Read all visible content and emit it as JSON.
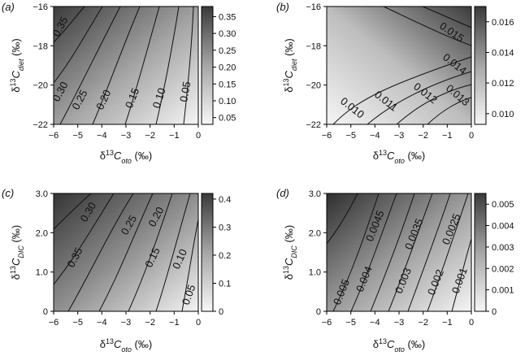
{
  "figure": {
    "panels": [
      {
        "label": "(a)",
        "xlabel_parts": {
          "delta": "δ",
          "sup": "13",
          "C": "C",
          "sub": "oto",
          "unit": " (‰)"
        },
        "ylabel_parts": {
          "delta": "δ",
          "sup": "13",
          "C": "C",
          "sub": "diet",
          "unit": " (‰)"
        },
        "xticks": [
          "−6",
          "−5",
          "−4",
          "−3",
          "−2",
          "−1",
          "0"
        ],
        "yticks": [
          "−16",
          "−18",
          "−20",
          "−22"
        ],
        "colorbar_ticks": [
          "0.35",
          "0.30",
          "0.25",
          "0.20",
          "0.15",
          "0.10",
          "0.05"
        ],
        "contour_labels": [
          "0.35",
          "0.30",
          "0.25",
          "0.20",
          "0.15",
          "0.10",
          "0.05"
        ]
      },
      {
        "label": "(b)",
        "xlabel_parts": {
          "delta": "δ",
          "sup": "13",
          "C": "C",
          "sub": "oto",
          "unit": " (‰)"
        },
        "ylabel_parts": {
          "delta": "δ",
          "sup": "13",
          "C": "C",
          "sub": "diet",
          "unit": " (‰)"
        },
        "xticks": [
          "−6",
          "−5",
          "−4",
          "−3",
          "−2",
          "−1",
          "0"
        ],
        "yticks": [
          "−16",
          "−18",
          "−20",
          "−22"
        ],
        "colorbar_ticks": [
          "0.016",
          "0.014",
          "0.012",
          "0.010"
        ],
        "contour_labels": [
          "0.010",
          "0.011",
          "0.012",
          "0.013",
          "0.014",
          "0.015"
        ]
      },
      {
        "label": "(c)",
        "xlabel_parts": {
          "delta": "δ",
          "sup": "13",
          "C": "C",
          "sub": "oto",
          "unit": " (‰)"
        },
        "ylabel_parts": {
          "delta": "δ",
          "sup": "13",
          "C": "C",
          "sub": "DIC",
          "unit": " (‰)"
        },
        "xticks": [
          "−6",
          "−5",
          "−4",
          "−3",
          "−2",
          "−1",
          "0"
        ],
        "yticks": [
          "3.0",
          "2.0",
          "1.0",
          "0"
        ],
        "colorbar_ticks": [
          "0.4",
          "0.3",
          "0.2",
          "0.1",
          "0"
        ],
        "contour_labels": [
          "0.35",
          "0.30",
          "0.25",
          "0.20",
          "0.15",
          "0.10",
          "0.05"
        ]
      },
      {
        "label": "(d)",
        "xlabel_parts": {
          "delta": "δ",
          "sup": "13",
          "C": "C",
          "sub": "oto",
          "unit": " (‰)"
        },
        "ylabel_parts": {
          "delta": "δ",
          "sup": "13",
          "C": "C",
          "sub": "DIC",
          "unit": " (‰)"
        },
        "xticks": [
          "−6",
          "−5",
          "−4",
          "−3",
          "−2",
          "−1",
          "0"
        ],
        "yticks": [
          "3.0",
          "2.0",
          "1.0",
          "0"
        ],
        "colorbar_ticks": [
          "0.005",
          "0.004",
          "0.003",
          "0.002",
          "0.001",
          "0"
        ],
        "contour_labels": [
          "0.005",
          "0.0045",
          "0.004",
          "0.0035",
          "0.003",
          "0.0025",
          "0.002",
          "0.001"
        ]
      }
    ]
  },
  "chart_data": [
    {
      "type": "heatmap",
      "panel": "(a)",
      "x": {
        "label": "δ13Coto (‰)",
        "range": [
          -6,
          0
        ]
      },
      "y": {
        "label": "δ13Cdiet (‰)",
        "range": [
          -22,
          -16
        ]
      },
      "colorbar": {
        "range": [
          0.03,
          0.38
        ],
        "ticks": [
          0.35,
          0.3,
          0.25,
          0.2,
          0.15,
          0.1,
          0.05
        ]
      },
      "colormap": [
        "#f7f7f7",
        "#3a3a3a"
      ],
      "contour_levels": [
        0.35,
        0.3,
        0.25,
        0.2,
        0.15,
        0.1,
        0.05
      ]
    },
    {
      "type": "heatmap",
      "panel": "(b)",
      "x": {
        "label": "δ13Coto (‰)",
        "range": [
          -6,
          0
        ]
      },
      "y": {
        "label": "δ13Cdiet (‰)",
        "range": [
          -22,
          -16
        ]
      },
      "colorbar": {
        "range": [
          0.0093,
          0.017
        ],
        "ticks": [
          0.016,
          0.014,
          0.012,
          0.01
        ]
      },
      "colormap": [
        "#f7f7f7",
        "#3a3a3a"
      ],
      "contour_levels": [
        0.01,
        0.011,
        0.012,
        0.013,
        0.014,
        0.015
      ]
    },
    {
      "type": "heatmap",
      "panel": "(c)",
      "x": {
        "label": "δ13Coto (‰)",
        "range": [
          -6,
          0
        ]
      },
      "y": {
        "label": "δ13CDIC (‰)",
        "range": [
          0,
          3
        ]
      },
      "colorbar": {
        "range": [
          0,
          0.42
        ],
        "ticks": [
          0.4,
          0.3,
          0.2,
          0.1,
          0
        ]
      },
      "colormap": [
        "#f7f7f7",
        "#3a3a3a"
      ],
      "contour_levels": [
        0.35,
        0.3,
        0.25,
        0.2,
        0.15,
        0.1,
        0.05
      ]
    },
    {
      "type": "heatmap",
      "panel": "(d)",
      "x": {
        "label": "δ13Coto (‰)",
        "range": [
          -6,
          0
        ]
      },
      "y": {
        "label": "δ13CDIC (‰)",
        "range": [
          0,
          3
        ]
      },
      "colorbar": {
        "range": [
          0,
          0.0055
        ],
        "ticks": [
          0.005,
          0.004,
          0.003,
          0.002,
          0.001,
          0
        ]
      },
      "colormap": [
        "#f7f7f7",
        "#3a3a3a"
      ],
      "contour_levels": [
        0.005,
        0.0045,
        0.004,
        0.0035,
        0.003,
        0.0025,
        0.002,
        0.001
      ]
    }
  ]
}
